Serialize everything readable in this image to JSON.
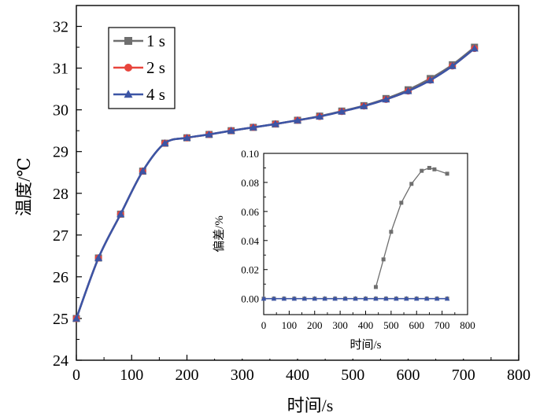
{
  "chart_data": [
    {
      "type": "line",
      "title": "",
      "xlabel": "时间/s",
      "ylabel": "温度/℃",
      "xlim": [
        0,
        800
      ],
      "ylim": [
        24,
        32.5
      ],
      "xticks": [
        0,
        100,
        200,
        300,
        400,
        500,
        600,
        700,
        800
      ],
      "yticks": [
        24,
        25,
        26,
        27,
        28,
        29,
        30,
        31,
        32
      ],
      "x": [
        0,
        40,
        80,
        120,
        160,
        200,
        240,
        280,
        320,
        360,
        400,
        440,
        480,
        520,
        560,
        600,
        640,
        680,
        720
      ],
      "series": [
        {
          "name": "1 s",
          "color": "#6f6f6f",
          "marker": "square",
          "values": [
            25.0,
            26.45,
            27.5,
            28.53,
            29.2,
            29.33,
            29.41,
            29.5,
            29.58,
            29.66,
            29.75,
            29.85,
            29.97,
            30.1,
            30.27,
            30.48,
            30.75,
            31.08,
            31.5
          ]
        },
        {
          "name": "2 s",
          "color": "#e8453c",
          "marker": "circle",
          "values": [
            25.0,
            26.45,
            27.5,
            28.53,
            29.2,
            29.33,
            29.41,
            29.5,
            29.58,
            29.66,
            29.75,
            29.84,
            29.96,
            30.09,
            30.25,
            30.45,
            30.71,
            31.05,
            31.47
          ]
        },
        {
          "name": "4 s",
          "color": "#3c55a5",
          "marker": "triangle",
          "values": [
            25.0,
            26.45,
            27.5,
            28.53,
            29.2,
            29.33,
            29.41,
            29.5,
            29.58,
            29.66,
            29.75,
            29.84,
            29.96,
            30.09,
            30.25,
            30.45,
            30.71,
            31.05,
            31.47
          ]
        }
      ],
      "legend": {
        "position": "top-left",
        "entries": [
          "1 s",
          "2 s",
          "4 s"
        ]
      }
    },
    {
      "type": "line",
      "role": "inset",
      "title": "",
      "xlabel": "时间/s",
      "ylabel": "偏差/%",
      "xlim": [
        0,
        800
      ],
      "ylim": [
        -0.011,
        0.1
      ],
      "xticks": [
        0,
        100,
        200,
        300,
        400,
        500,
        600,
        700,
        800
      ],
      "yticks": [
        "0.00",
        "0.02",
        "0.04",
        "0.06",
        "0.08",
        "0.10"
      ],
      "series": [
        {
          "name": "1 s",
          "color": "#6f6f6f",
          "marker": "square",
          "x": [
            0,
            40,
            80,
            120,
            160,
            200,
            240,
            280,
            320,
            360,
            400,
            440,
            480,
            520,
            560,
            600,
            640,
            680,
            720
          ],
          "values": [
            0,
            0,
            0,
            0,
            0,
            0,
            0,
            0,
            0,
            0,
            0,
            0,
            0,
            0,
            0,
            0,
            0,
            0,
            0
          ]
        },
        {
          "name": "2 s",
          "color": "#6f6f6f",
          "marker": "square",
          "x": [
            440,
            470,
            500,
            540,
            580,
            620,
            650,
            670,
            720
          ],
          "values": [
            0.008,
            0.027,
            0.046,
            0.066,
            0.079,
            0.088,
            0.09,
            0.089,
            0.086
          ]
        },
        {
          "name": "4 s",
          "color": "#3c55a5",
          "marker": "triangle",
          "x": [
            0,
            40,
            80,
            120,
            160,
            200,
            240,
            280,
            320,
            360,
            400,
            440,
            480,
            520,
            560,
            600,
            640,
            680,
            720
          ],
          "values": [
            0,
            0,
            0,
            0,
            0,
            0,
            0,
            0,
            0,
            0,
            0,
            0,
            0,
            0,
            0,
            0,
            0,
            0,
            0
          ]
        }
      ]
    }
  ]
}
